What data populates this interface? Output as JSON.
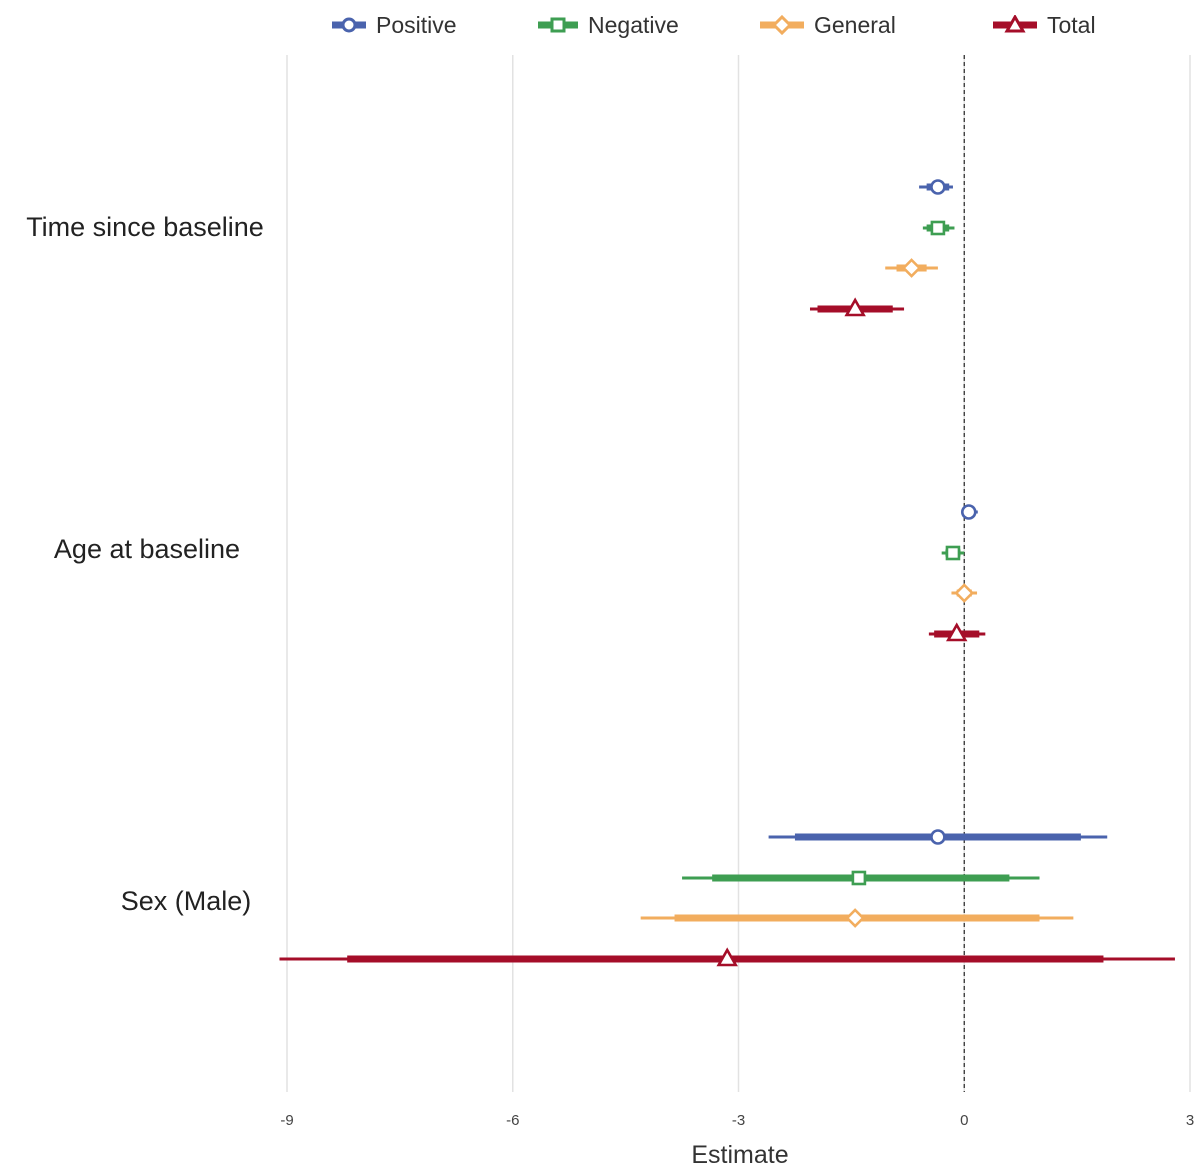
{
  "chart_data": {
    "type": "forest",
    "xlabel": "Estimate",
    "xlim": [
      -9,
      3
    ],
    "xticks": [
      -9,
      -6,
      -3,
      0,
      3
    ],
    "reference_line": 0,
    "grid": "vertical",
    "legend": "top",
    "groups": [
      "Time since baseline",
      "Age at baseline",
      "Sex (Male)"
    ],
    "series": [
      {
        "name": "Positive",
        "color": "#4a63ad",
        "marker": "circle",
        "points": [
          {
            "group": "Time since baseline",
            "estimate": -0.35,
            "ci_inner": [
              -0.5,
              -0.2
            ],
            "ci_outer": [
              -0.6,
              -0.15
            ]
          },
          {
            "group": "Age at baseline",
            "estimate": 0.06,
            "ci_inner": [
              0.0,
              0.12
            ],
            "ci_outer": [
              -0.03,
              0.18
            ]
          },
          {
            "group": "Sex (Male)",
            "estimate": -0.35,
            "ci_inner": [
              -2.25,
              1.55
            ],
            "ci_outer": [
              -2.6,
              1.9
            ]
          }
        ]
      },
      {
        "name": "Negative",
        "color": "#3e9e52",
        "marker": "square",
        "points": [
          {
            "group": "Time since baseline",
            "estimate": -0.35,
            "ci_inner": [
              -0.5,
              -0.2
            ],
            "ci_outer": [
              -0.55,
              -0.13
            ]
          },
          {
            "group": "Age at baseline",
            "estimate": -0.15,
            "ci_inner": [
              -0.25,
              -0.05
            ],
            "ci_outer": [
              -0.3,
              0.0
            ]
          },
          {
            "group": "Sex (Male)",
            "estimate": -1.4,
            "ci_inner": [
              -3.35,
              0.6
            ],
            "ci_outer": [
              -3.75,
              1.0
            ]
          }
        ]
      },
      {
        "name": "General",
        "color": "#f2ad5e",
        "marker": "diamond",
        "points": [
          {
            "group": "Time since baseline",
            "estimate": -0.7,
            "ci_inner": [
              -0.9,
              -0.5
            ],
            "ci_outer": [
              -1.05,
              -0.35
            ]
          },
          {
            "group": "Age at baseline",
            "estimate": 0.0,
            "ci_inner": [
              -0.1,
              0.1
            ],
            "ci_outer": [
              -0.17,
              0.17
            ]
          },
          {
            "group": "Sex (Male)",
            "estimate": -1.45,
            "ci_inner": [
              -3.85,
              1.0
            ],
            "ci_outer": [
              -4.3,
              1.45
            ]
          }
        ]
      },
      {
        "name": "Total",
        "color": "#a50e29",
        "marker": "triangle",
        "points": [
          {
            "group": "Time since baseline",
            "estimate": -1.45,
            "ci_inner": [
              -1.95,
              -0.95
            ],
            "ci_outer": [
              -2.05,
              -0.8
            ]
          },
          {
            "group": "Age at baseline",
            "estimate": -0.1,
            "ci_inner": [
              -0.4,
              0.2
            ],
            "ci_outer": [
              -0.47,
              0.28
            ]
          },
          {
            "group": "Sex (Male)",
            "estimate": -3.15,
            "ci_inner": [
              -8.2,
              1.85
            ],
            "ci_outer": [
              -9.1,
              2.8
            ]
          }
        ]
      }
    ]
  }
}
